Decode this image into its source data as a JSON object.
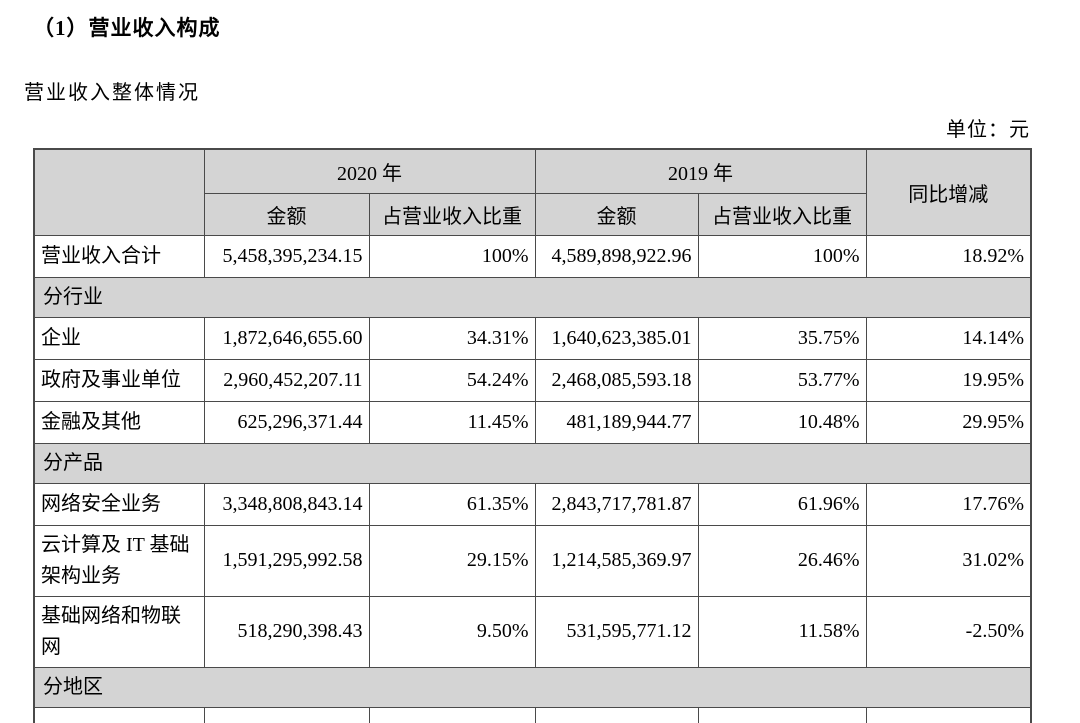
{
  "page": {
    "title": "（1）营业收入构成",
    "subtitle": "营业收入整体情况",
    "unit_label": "单位：元"
  },
  "colors": {
    "shaded_cell_bg": "#d4d4d4",
    "border": "#4a4a4a",
    "text": "#000000"
  },
  "table": {
    "header": {
      "corner": "",
      "col_2020": "2020 年",
      "col_2019": "2019 年",
      "amount": "金额",
      "share": "占营业收入比重",
      "yoy": "同比增减"
    },
    "rows": [
      {
        "type": "total",
        "label": "营业收入合计",
        "a2020": "5,458,395,234.15",
        "p2020": "100%",
        "a2019": "4,589,898,922.96",
        "p2019": "100%",
        "yoy": "18.92%"
      },
      {
        "type": "section",
        "label": "分行业"
      },
      {
        "type": "data",
        "label": "企业",
        "a2020": "1,872,646,655.60",
        "p2020": "34.31%",
        "a2019": "1,640,623,385.01",
        "p2019": "35.75%",
        "yoy": "14.14%"
      },
      {
        "type": "data",
        "label": "政府及事业单位",
        "a2020": "2,960,452,207.11",
        "p2020": "54.24%",
        "a2019": "2,468,085,593.18",
        "p2019": "53.77%",
        "yoy": "19.95%"
      },
      {
        "type": "data",
        "label": "金融及其他",
        "a2020": "625,296,371.44",
        "p2020": "11.45%",
        "a2019": "481,189,944.77",
        "p2019": "10.48%",
        "yoy": "29.95%"
      },
      {
        "type": "section",
        "label": "分产品"
      },
      {
        "type": "data",
        "label": "网络安全业务",
        "a2020": "3,348,808,843.14",
        "p2020": "61.35%",
        "a2019": "2,843,717,781.87",
        "p2019": "61.96%",
        "yoy": "17.76%"
      },
      {
        "type": "data",
        "label": "云计算及 IT 基础架构业务",
        "a2020": "1,591,295,992.58",
        "p2020": "29.15%",
        "a2019": "1,214,585,369.97",
        "p2019": "26.46%",
        "yoy": "31.02%"
      },
      {
        "type": "data",
        "label": "基础网络和物联网",
        "a2020": "518,290,398.43",
        "p2020": "9.50%",
        "a2019": "531,595,771.12",
        "p2019": "11.58%",
        "yoy": "-2.50%"
      },
      {
        "type": "section",
        "label": "分地区"
      },
      {
        "type": "data",
        "label": "",
        "a2020": "",
        "p2020": "",
        "a2019": "",
        "p2019": "",
        "yoy": ""
      }
    ]
  }
}
